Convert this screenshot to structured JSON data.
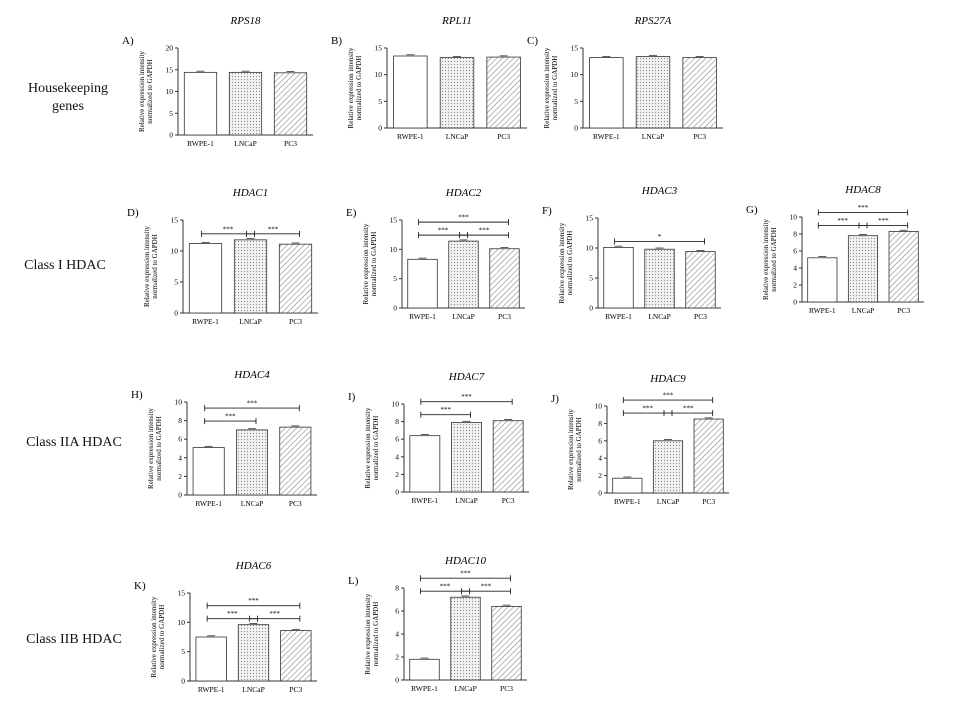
{
  "row_labels": [
    {
      "text": "Housekeeping genes",
      "lines": [
        "Housekeeping",
        "genes"
      ]
    },
    {
      "text": "Class I HDAC",
      "lines": [
        "Class I HDAC"
      ]
    },
    {
      "text": "Class IIA HDAC",
      "lines": [
        "Class IIA HDAC"
      ]
    },
    {
      "text": "Class IIB HDAC",
      "lines": [
        "Class IIB HDAC"
      ]
    }
  ],
  "colors": {
    "bar_outline": "#333333",
    "hatch": "#888888",
    "axis": "#333333",
    "bracket": "#222222"
  },
  "chart_data": [
    {
      "panel": "A)",
      "title": "RPS18",
      "type": "bar",
      "categories": [
        "RWPE-1",
        "LNCaP",
        "PC3"
      ],
      "values": [
        14.4,
        14.4,
        14.3
      ],
      "ylim": [
        0,
        20
      ],
      "yticks": [
        0,
        5,
        10,
        15,
        20
      ],
      "ylabel": [
        "Relative expression intensity",
        "normalized to GAPDH"
      ],
      "brackets": [],
      "fills": [
        "open",
        "dotted",
        "hatched"
      ]
    },
    {
      "panel": "B)",
      "title": "RPL11",
      "type": "bar",
      "categories": [
        "RWPE-1",
        "LNCaP",
        "PC3"
      ],
      "values": [
        13.5,
        13.2,
        13.3
      ],
      "ylim": [
        0,
        15
      ],
      "yticks": [
        0,
        5,
        10,
        15
      ],
      "ylabel": [
        "Relative expression intensity",
        "normalized to GAPDH"
      ],
      "brackets": [],
      "fills": [
        "open",
        "dotted",
        "hatched"
      ]
    },
    {
      "panel": "C)",
      "title": "RPS27A",
      "type": "bar",
      "categories": [
        "RWPE-1",
        "LNCaP",
        "PC3"
      ],
      "values": [
        13.2,
        13.4,
        13.2
      ],
      "ylim": [
        0,
        15
      ],
      "yticks": [
        0,
        5,
        10,
        15
      ],
      "ylabel": [
        "Relative expression intensity",
        "normalized to GAPDH"
      ],
      "brackets": [],
      "fills": [
        "open",
        "dotted",
        "hatched"
      ]
    },
    {
      "panel": "D)",
      "title": "HDAC1",
      "type": "bar",
      "categories": [
        "RWPE-1",
        "LNCaP",
        "PC3"
      ],
      "values": [
        11.2,
        11.8,
        11.1
      ],
      "ylim": [
        0,
        15
      ],
      "yticks": [
        0,
        5,
        10,
        15
      ],
      "ylabel": [
        "Relative expression intensity",
        "normalized to GAPDH"
      ],
      "brackets": [
        {
          "from": 0,
          "to": 1,
          "label": "***",
          "level": 1
        },
        {
          "from": 1,
          "to": 2,
          "label": "***",
          "level": 1
        }
      ],
      "fills": [
        "open",
        "dotted",
        "hatched"
      ]
    },
    {
      "panel": "E)",
      "title": "HDAC2",
      "type": "bar",
      "categories": [
        "RWPE-1",
        "LNCaP",
        "PC3"
      ],
      "values": [
        8.3,
        11.4,
        10.1
      ],
      "ylim": [
        0,
        15
      ],
      "yticks": [
        0,
        5,
        10,
        15
      ],
      "ylabel": [
        "Relative expression intensity",
        "normalized to GAPDH"
      ],
      "brackets": [
        {
          "from": 0,
          "to": 1,
          "label": "***",
          "level": 1
        },
        {
          "from": 1,
          "to": 2,
          "label": "***",
          "level": 1
        },
        {
          "from": 0,
          "to": 2,
          "label": "***",
          "level": 2
        }
      ],
      "fills": [
        "open",
        "dotted",
        "hatched"
      ]
    },
    {
      "panel": "F)",
      "title": "HDAC3",
      "type": "bar",
      "categories": [
        "RWPE-1",
        "LNCaP",
        "PC3"
      ],
      "values": [
        10.1,
        9.8,
        9.4
      ],
      "ylim": [
        0,
        15
      ],
      "yticks": [
        0,
        5,
        10,
        15
      ],
      "ylabel": [
        "Relative expression intensity",
        "normalized to GAPDH"
      ],
      "brackets": [
        {
          "from": 0,
          "to": 2,
          "label": "*",
          "level": 1
        }
      ],
      "fills": [
        "open",
        "dotted",
        "hatched"
      ]
    },
    {
      "panel": "G)",
      "title": "HDAC8",
      "type": "bar",
      "categories": [
        "RWPE-1",
        "LNCaP",
        "PC3"
      ],
      "values": [
        5.2,
        7.8,
        8.3
      ],
      "ylim": [
        0,
        10
      ],
      "yticks": [
        0,
        2,
        4,
        6,
        8,
        10
      ],
      "ylabel": [
        "Relative expression intensity",
        "normalized to GAPDH"
      ],
      "brackets": [
        {
          "from": 0,
          "to": 1,
          "label": "***",
          "level": 1
        },
        {
          "from": 1,
          "to": 2,
          "label": "***",
          "level": 1
        },
        {
          "from": 0,
          "to": 2,
          "label": "***",
          "level": 2
        }
      ],
      "fills": [
        "open",
        "dotted",
        "hatched"
      ]
    },
    {
      "panel": "H)",
      "title": "HDAC4",
      "type": "bar",
      "categories": [
        "RWPE-1",
        "LNCaP",
        "PC3"
      ],
      "values": [
        5.1,
        7.0,
        7.3
      ],
      "ylim": [
        0,
        10
      ],
      "yticks": [
        0,
        2,
        4,
        6,
        8,
        10
      ],
      "ylabel": [
        "Relative expression intensity",
        "normalized to GAPDH"
      ],
      "brackets": [
        {
          "from": 0,
          "to": 1,
          "label": "***",
          "level": 1
        },
        {
          "from": 0,
          "to": 2,
          "label": "***",
          "level": 2
        }
      ],
      "fills": [
        "open",
        "dotted",
        "hatched"
      ]
    },
    {
      "panel": "I)",
      "title": "HDAC7",
      "type": "bar",
      "categories": [
        "RWPE-1",
        "LNCaP",
        "PC3"
      ],
      "values": [
        6.4,
        7.9,
        8.1
      ],
      "ylim": [
        0,
        10
      ],
      "yticks": [
        0,
        2,
        4,
        6,
        8,
        10
      ],
      "ylabel": [
        "Relative expression intensity",
        "normalized to GAPDH"
      ],
      "brackets": [
        {
          "from": 0,
          "to": 1,
          "label": "***",
          "level": 1
        },
        {
          "from": 0,
          "to": 2,
          "label": "***",
          "level": 2
        }
      ],
      "fills": [
        "open",
        "dotted",
        "hatched"
      ]
    },
    {
      "panel": "J)",
      "title": "HDAC9",
      "type": "bar",
      "categories": [
        "RWPE-1",
        "LNCaP",
        "PC3"
      ],
      "values": [
        1.7,
        6.0,
        8.5
      ],
      "ylim": [
        0,
        10
      ],
      "yticks": [
        0,
        2,
        4,
        6,
        8,
        10
      ],
      "ylabel": [
        "Relative expression intensity",
        "normalized to GAPDH"
      ],
      "brackets": [
        {
          "from": 0,
          "to": 1,
          "label": "***",
          "level": 1
        },
        {
          "from": 1,
          "to": 2,
          "label": "***",
          "level": 1
        },
        {
          "from": 0,
          "to": 2,
          "label": "***",
          "level": 2
        }
      ],
      "fills": [
        "open",
        "dotted",
        "hatched"
      ]
    },
    {
      "panel": "K)",
      "title": "HDAC6",
      "type": "bar",
      "categories": [
        "RWPE-1",
        "LNCaP",
        "PC3"
      ],
      "values": [
        7.5,
        9.6,
        8.6
      ],
      "ylim": [
        0,
        15
      ],
      "yticks": [
        0,
        5,
        10,
        15
      ],
      "ylabel": [
        "Relative expression intensity",
        "normalized to GAPDH"
      ],
      "brackets": [
        {
          "from": 0,
          "to": 1,
          "label": "***",
          "level": 1
        },
        {
          "from": 1,
          "to": 2,
          "label": "***",
          "level": 1
        },
        {
          "from": 0,
          "to": 2,
          "label": "***",
          "level": 2
        }
      ],
      "fills": [
        "open",
        "dotted",
        "hatched"
      ]
    },
    {
      "panel": "L)",
      "title": "HDAC10",
      "type": "bar",
      "categories": [
        "RWPE-1",
        "LNCaP",
        "PC3"
      ],
      "values": [
        1.8,
        7.2,
        6.4
      ],
      "ylim": [
        0,
        8
      ],
      "yticks": [
        0,
        2,
        4,
        6,
        8
      ],
      "ylabel": [
        "Relative expression intensity",
        "normalized to GAPDH"
      ],
      "brackets": [
        {
          "from": 0,
          "to": 1,
          "label": "***",
          "level": 1
        },
        {
          "from": 1,
          "to": 2,
          "label": "***",
          "level": 1
        },
        {
          "from": 0,
          "to": 2,
          "label": "***",
          "level": 2
        }
      ],
      "fills": [
        "open",
        "dotted",
        "hatched"
      ]
    }
  ]
}
